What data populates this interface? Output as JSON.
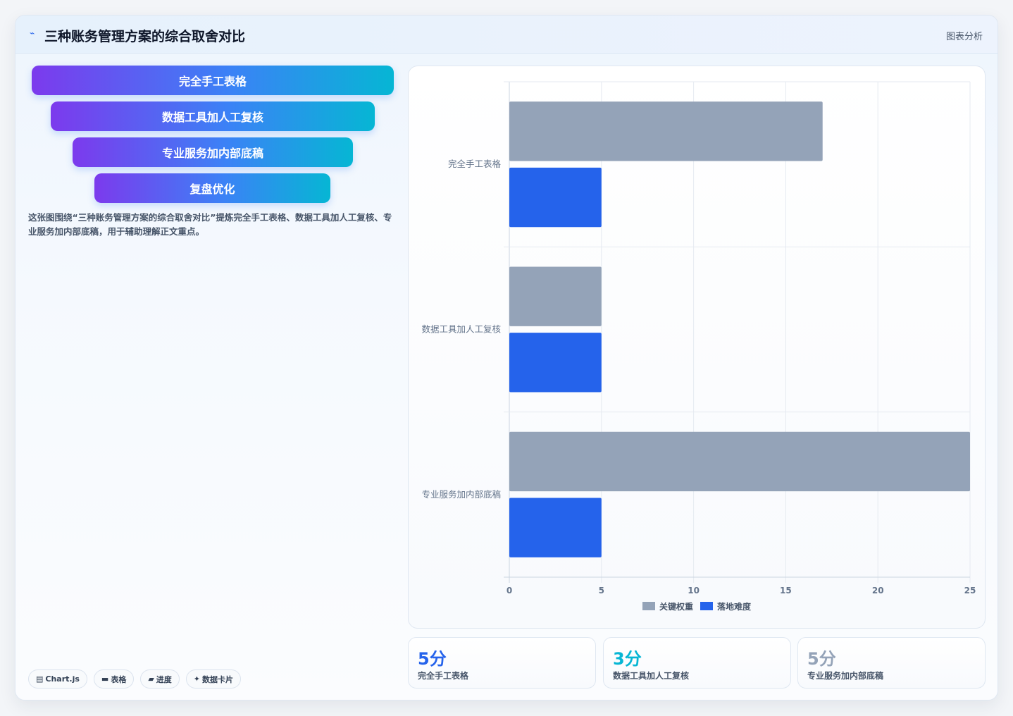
{
  "header": {
    "icon": "chart-line-icon",
    "title": "三种账务管理方案的综合取舍对比",
    "link": "图表分析"
  },
  "funnel": [
    {
      "label": "完全手工表格"
    },
    {
      "label": "数据工具加人工复核"
    },
    {
      "label": "专业服务加内部底稿"
    },
    {
      "label": "复盘优化"
    }
  ],
  "description": "这张图围绕“三种账务管理方案的综合取舍对比”提炼完全手工表格、数据工具加人工复核、专业服务加内部底稿，用于辅助理解正文重点。",
  "tags": [
    {
      "icon": "chart-icon",
      "glyph": "▤",
      "label": "Chart.js"
    },
    {
      "icon": "table-icon",
      "glyph": "▬",
      "label": "表格"
    },
    {
      "icon": "progress-icon",
      "glyph": "▰",
      "label": "进度"
    },
    {
      "icon": "sparkle-icon",
      "glyph": "✦",
      "label": "数据卡片"
    }
  ],
  "colors": {
    "series_weight": "#94a3b8",
    "series_difficulty": "#2563eb",
    "stat_1": "#2563eb",
    "stat_2": "#06b6d4",
    "stat_3": "#94a3b8"
  },
  "chart_data": {
    "type": "bar",
    "orientation": "horizontal",
    "categories": [
      "完全手工表格",
      "数据工具加人工复核",
      "专业服务加内部底稿"
    ],
    "series": [
      {
        "name": "关键权重",
        "values": [
          17,
          5,
          25
        ]
      },
      {
        "name": "落地难度",
        "values": [
          5,
          5,
          5
        ]
      }
    ],
    "xlim": [
      0,
      25
    ],
    "xticks": [
      0,
      5,
      10,
      15,
      20,
      25
    ],
    "grid": true,
    "legend": "bottom"
  },
  "stats": [
    {
      "value": "5分",
      "label": "完全手工表格"
    },
    {
      "value": "3分",
      "label": "数据工具加人工复核"
    },
    {
      "value": "5分",
      "label": "专业服务加内部底稿"
    }
  ]
}
